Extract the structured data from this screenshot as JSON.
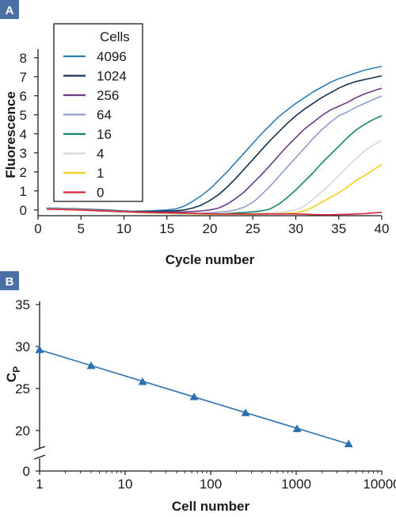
{
  "colors": {
    "panel_badge": "#4a6fa5",
    "axis": "#1a1a1a",
    "panel_b_series": "#2a6fb0"
  },
  "chart_data": [
    {
      "panel": "A",
      "type": "line",
      "xlabel": "Cycle number",
      "ylabel": "Fluorescence",
      "xlim": [
        0,
        40
      ],
      "ylim": [
        -0.3,
        8.2
      ],
      "xticks": [
        0,
        5,
        10,
        15,
        20,
        25,
        30,
        35,
        40
      ],
      "yticks": [
        0,
        1,
        2,
        3,
        4,
        5,
        6,
        7,
        8
      ],
      "legend": {
        "title": "Cells",
        "position": "top-left"
      },
      "x": [
        1,
        2,
        3,
        4,
        5,
        6,
        7,
        8,
        9,
        10,
        11,
        12,
        13,
        14,
        15,
        16,
        17,
        18,
        19,
        20,
        21,
        22,
        23,
        24,
        25,
        26,
        27,
        28,
        29,
        30,
        31,
        32,
        33,
        34,
        35,
        36,
        37,
        38,
        39,
        40
      ],
      "series": [
        {
          "name": "4096",
          "color": "#2f7db7",
          "values": [
            0.1,
            0.1,
            0.08,
            0.07,
            0.05,
            0.03,
            0.02,
            0.0,
            -0.02,
            -0.05,
            -0.07,
            -0.06,
            -0.05,
            -0.02,
            0.0,
            0.05,
            0.2,
            0.45,
            0.75,
            1.1,
            1.55,
            2.0,
            2.5,
            3.0,
            3.5,
            4.0,
            4.45,
            4.9,
            5.25,
            5.6,
            5.9,
            6.2,
            6.45,
            6.7,
            6.9,
            7.05,
            7.2,
            7.35,
            7.45,
            7.55
          ]
        },
        {
          "name": "1024",
          "color": "#17324f",
          "values": [
            0.08,
            0.07,
            0.06,
            0.05,
            0.04,
            0.02,
            0.0,
            -0.02,
            -0.04,
            -0.06,
            -0.08,
            -0.08,
            -0.08,
            -0.07,
            -0.06,
            -0.04,
            0.0,
            0.1,
            0.25,
            0.5,
            0.8,
            1.2,
            1.65,
            2.15,
            2.65,
            3.15,
            3.65,
            4.1,
            4.55,
            4.95,
            5.3,
            5.6,
            5.9,
            6.15,
            6.4,
            6.6,
            6.75,
            6.85,
            6.95,
            7.05
          ]
        },
        {
          "name": "256",
          "color": "#6b3a86",
          "values": [
            0.08,
            0.07,
            0.05,
            0.04,
            0.03,
            0.01,
            -0.01,
            -0.03,
            -0.05,
            -0.07,
            -0.09,
            -0.1,
            -0.11,
            -0.11,
            -0.11,
            -0.11,
            -0.1,
            -0.08,
            -0.05,
            0.0,
            0.1,
            0.3,
            0.6,
            0.95,
            1.4,
            1.85,
            2.35,
            2.85,
            3.35,
            3.8,
            4.25,
            4.6,
            4.95,
            5.25,
            5.45,
            5.65,
            5.9,
            6.1,
            6.25,
            6.4
          ]
        },
        {
          "name": "64",
          "color": "#8e9ec9",
          "values": [
            0.08,
            0.07,
            0.05,
            0.04,
            0.02,
            0.0,
            -0.02,
            -0.04,
            -0.06,
            -0.08,
            -0.1,
            -0.12,
            -0.14,
            -0.15,
            -0.16,
            -0.17,
            -0.18,
            -0.18,
            -0.17,
            -0.15,
            -0.12,
            -0.08,
            0.0,
            0.15,
            0.4,
            0.8,
            1.25,
            1.75,
            2.25,
            2.75,
            3.25,
            3.75,
            4.2,
            4.6,
            4.95,
            5.15,
            5.4,
            5.6,
            5.8,
            6.0
          ]
        },
        {
          "name": "16",
          "color": "#13866a",
          "values": [
            0.06,
            0.05,
            0.03,
            0.02,
            0.0,
            -0.02,
            -0.04,
            -0.06,
            -0.08,
            -0.1,
            -0.12,
            -0.14,
            -0.15,
            -0.17,
            -0.18,
            -0.19,
            -0.2,
            -0.21,
            -0.21,
            -0.22,
            -0.21,
            -0.19,
            -0.16,
            -0.13,
            -0.1,
            -0.05,
            0.05,
            0.3,
            0.65,
            1.05,
            1.5,
            1.95,
            2.45,
            2.9,
            3.35,
            3.8,
            4.2,
            4.5,
            4.75,
            4.95
          ]
        },
        {
          "name": "4",
          "color": "#d4d6dc",
          "values": [
            0.05,
            0.04,
            0.03,
            0.02,
            0.0,
            -0.02,
            -0.04,
            -0.06,
            -0.08,
            -0.1,
            -0.12,
            -0.14,
            -0.16,
            -0.17,
            -0.18,
            -0.19,
            -0.2,
            -0.21,
            -0.22,
            -0.22,
            -0.22,
            -0.22,
            -0.22,
            -0.21,
            -0.2,
            -0.18,
            -0.16,
            -0.13,
            -0.08,
            0.0,
            0.2,
            0.55,
            0.95,
            1.35,
            1.8,
            2.25,
            2.7,
            3.1,
            3.4,
            3.65
          ]
        },
        {
          "name": "1",
          "color": "#f0d21b",
          "values": [
            0.04,
            0.03,
            0.02,
            0.01,
            -0.01,
            -0.02,
            -0.04,
            -0.06,
            -0.08,
            -0.1,
            -0.12,
            -0.13,
            -0.15,
            -0.16,
            -0.17,
            -0.18,
            -0.19,
            -0.2,
            -0.21,
            -0.22,
            -0.22,
            -0.22,
            -0.22,
            -0.22,
            -0.22,
            -0.22,
            -0.21,
            -0.2,
            -0.18,
            -0.15,
            -0.05,
            0.15,
            0.4,
            0.65,
            0.9,
            1.2,
            1.55,
            1.8,
            2.1,
            2.4
          ]
        },
        {
          "name": "0",
          "color": "#d7263d",
          "values": [
            0.04,
            0.03,
            0.02,
            0.01,
            -0.01,
            -0.02,
            -0.04,
            -0.06,
            -0.08,
            -0.09,
            -0.11,
            -0.12,
            -0.13,
            -0.14,
            -0.15,
            -0.16,
            -0.17,
            -0.18,
            -0.19,
            -0.2,
            -0.21,
            -0.21,
            -0.21,
            -0.21,
            -0.21,
            -0.21,
            -0.21,
            -0.21,
            -0.21,
            -0.21,
            -0.22,
            -0.24,
            -0.25,
            -0.25,
            -0.24,
            -0.23,
            -0.21,
            -0.19,
            -0.16,
            -0.12
          ]
        }
      ]
    },
    {
      "panel": "B",
      "type": "scatter",
      "xlabel": "Cell number",
      "ylabel": "CP",
      "xscale": "log",
      "xlim": [
        1,
        10000
      ],
      "ylim_upper": [
        18,
        35
      ],
      "axis_break": "between 0 and 20",
      "xticks": [
        1,
        10,
        100,
        1000,
        10000
      ],
      "xtick_labels": [
        "1",
        "10",
        "100",
        "1000",
        "10000"
      ],
      "yticks": [
        0,
        20,
        25,
        30,
        35
      ],
      "x": [
        1,
        4,
        16,
        64,
        256,
        1024,
        4096
      ],
      "y": [
        29.6,
        27.7,
        25.8,
        24.0,
        22.1,
        20.2,
        18.4
      ],
      "fit_line": {
        "x": [
          1,
          4096
        ],
        "y": [
          29.6,
          18.4
        ]
      }
    }
  ]
}
